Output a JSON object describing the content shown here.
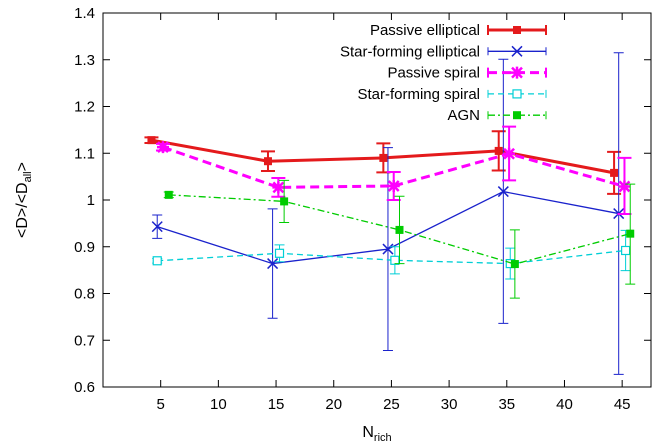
{
  "chart_data": {
    "type": "line",
    "xlabel": {
      "main": "N",
      "sub": "rich"
    },
    "ylabel": {
      "pre": "<D>/<D",
      "sub": "all",
      "post": ">"
    },
    "xlim": [
      0,
      47.5
    ],
    "ylim": [
      0.6,
      1.4
    ],
    "xticks": [
      5,
      10,
      15,
      20,
      25,
      30,
      35,
      40,
      45
    ],
    "xtick_labels": [
      "5",
      "10",
      "15",
      "20",
      "25",
      "30",
      "35",
      "40",
      "45"
    ],
    "yticks": [
      0.6,
      0.7,
      0.8,
      0.9,
      1.0,
      1.1,
      1.2,
      1.3,
      1.4
    ],
    "ytick_labels": [
      "0.6",
      "0.7",
      "0.8",
      "0.9",
      "1",
      "1.1",
      "1.2",
      "1.3",
      "1.4"
    ],
    "legend_position": "top-right",
    "grid": false,
    "series": [
      {
        "name": "Passive elliptical",
        "color": "#e41a1c",
        "line": "solid",
        "width": 3,
        "marker": "filled-square",
        "points": [
          {
            "x": 4.2,
            "y": 1.128,
            "lo": 1.122,
            "hi": 1.134
          },
          {
            "x": 14.3,
            "y": 1.083,
            "lo": 1.062,
            "hi": 1.104
          },
          {
            "x": 24.3,
            "y": 1.09,
            "lo": 1.059,
            "hi": 1.121
          },
          {
            "x": 34.3,
            "y": 1.105,
            "lo": 1.063,
            "hi": 1.147
          },
          {
            "x": 44.3,
            "y": 1.058,
            "lo": 1.013,
            "hi": 1.103
          }
        ]
      },
      {
        "name": "Star-forming elliptical",
        "color": "#1a22cc",
        "line": "solid",
        "width": 1.3,
        "marker": "x",
        "points": [
          {
            "x": 4.7,
            "y": 0.943,
            "lo": 0.918,
            "hi": 0.968
          },
          {
            "x": 14.7,
            "y": 0.864,
            "lo": 0.747,
            "hi": 0.981
          },
          {
            "x": 24.7,
            "y": 0.895,
            "lo": 0.678,
            "hi": 1.112
          },
          {
            "x": 34.7,
            "y": 1.018,
            "lo": 0.736,
            "hi": 1.301
          },
          {
            "x": 44.7,
            "y": 0.971,
            "lo": 0.627,
            "hi": 1.315
          }
        ]
      },
      {
        "name": "Passive spiral",
        "color": "#ff00ff",
        "line": "dashed",
        "width": 3,
        "marker": "star",
        "points": [
          {
            "x": 5.2,
            "y": 1.113,
            "lo": 1.106,
            "hi": 1.12
          },
          {
            "x": 15.2,
            "y": 1.027,
            "lo": 1.007,
            "hi": 1.047
          },
          {
            "x": 25.2,
            "y": 1.03,
            "lo": 1.0,
            "hi": 1.06
          },
          {
            "x": 35.2,
            "y": 1.099,
            "lo": 1.042,
            "hi": 1.157
          },
          {
            "x": 45.2,
            "y": 1.029,
            "lo": 0.97,
            "hi": 1.09
          }
        ]
      },
      {
        "name": "Star-forming spiral",
        "color": "#00cfd6",
        "line": "dashed",
        "width": 1.3,
        "marker": "open-square",
        "points": [
          {
            "x": 4.7,
            "y": 0.87,
            "lo": 0.865,
            "hi": 0.875
          },
          {
            "x": 15.3,
            "y": 0.886,
            "lo": 0.868,
            "hi": 0.904
          },
          {
            "x": 25.3,
            "y": 0.871,
            "lo": 0.842,
            "hi": 0.9
          },
          {
            "x": 35.3,
            "y": 0.864,
            "lo": 0.831,
            "hi": 0.897
          },
          {
            "x": 45.3,
            "y": 0.892,
            "lo": 0.849,
            "hi": 0.935
          }
        ]
      },
      {
        "name": "AGN",
        "color": "#00cc00",
        "line": "dashdot",
        "width": 1.3,
        "marker": "filled-square",
        "points": [
          {
            "x": 5.7,
            "y": 1.011,
            "lo": 1.005,
            "hi": 1.017
          },
          {
            "x": 15.7,
            "y": 0.997,
            "lo": 0.952,
            "hi": 1.042
          },
          {
            "x": 25.7,
            "y": 0.936,
            "lo": 0.864,
            "hi": 1.008
          },
          {
            "x": 35.7,
            "y": 0.863,
            "lo": 0.79,
            "hi": 0.936
          },
          {
            "x": 45.7,
            "y": 0.928,
            "lo": 0.82,
            "hi": 1.034
          }
        ]
      }
    ]
  }
}
